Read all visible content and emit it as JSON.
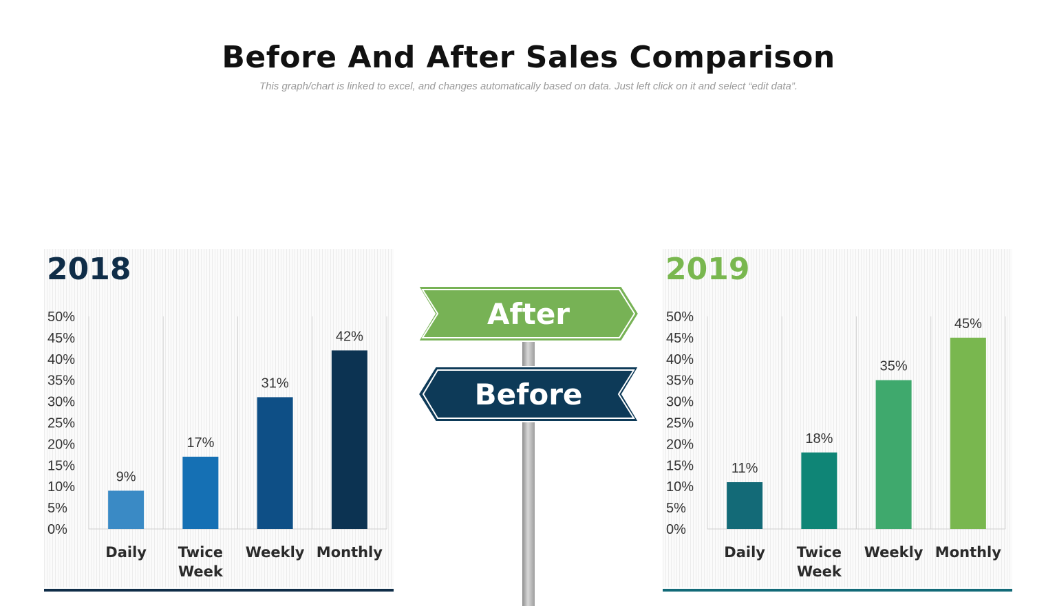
{
  "title": "Before And After Sales Comparison",
  "subtitle": "This graph/chart is linked to excel, and changes automatically based on data. Just left click on it and select “edit data”.",
  "signs": {
    "after": "After",
    "before": "Before"
  },
  "colors": {
    "sign_after": "#77b255",
    "sign_before": "#0d3a58",
    "year_2018": "#0f2d48",
    "year_2019": "#79b74f"
  },
  "chart_data": [
    {
      "type": "bar",
      "title": "2018",
      "categories": [
        "Daily",
        "Twice Week",
        "Weekly",
        "Monthly"
      ],
      "values": [
        9,
        17,
        31,
        42
      ],
      "value_labels": [
        "9%",
        "17%",
        "31%",
        "42%"
      ],
      "ylim": [
        0,
        50
      ],
      "yticks": [
        "0%",
        "5%",
        "10%",
        "15%",
        "20%",
        "25%",
        "30%",
        "35%",
        "40%",
        "45%",
        "50%"
      ],
      "bar_colors": [
        "#3a8ac5",
        "#1570b4",
        "#0e4f86",
        "#0c3352"
      ],
      "grid": "vertical"
    },
    {
      "type": "bar",
      "title": "2019",
      "categories": [
        "Daily",
        "Twice Week",
        "Weekly",
        "Monthly"
      ],
      "values": [
        11,
        18,
        35,
        45
      ],
      "value_labels": [
        "11%",
        "18%",
        "35%",
        "45%"
      ],
      "ylim": [
        0,
        50
      ],
      "yticks": [
        "0%",
        "5%",
        "10%",
        "15%",
        "20%",
        "25%",
        "30%",
        "35%",
        "40%",
        "45%",
        "50%"
      ],
      "bar_colors": [
        "#136a77",
        "#0f8576",
        "#3fa96d",
        "#79b74f"
      ],
      "grid": "vertical"
    }
  ]
}
